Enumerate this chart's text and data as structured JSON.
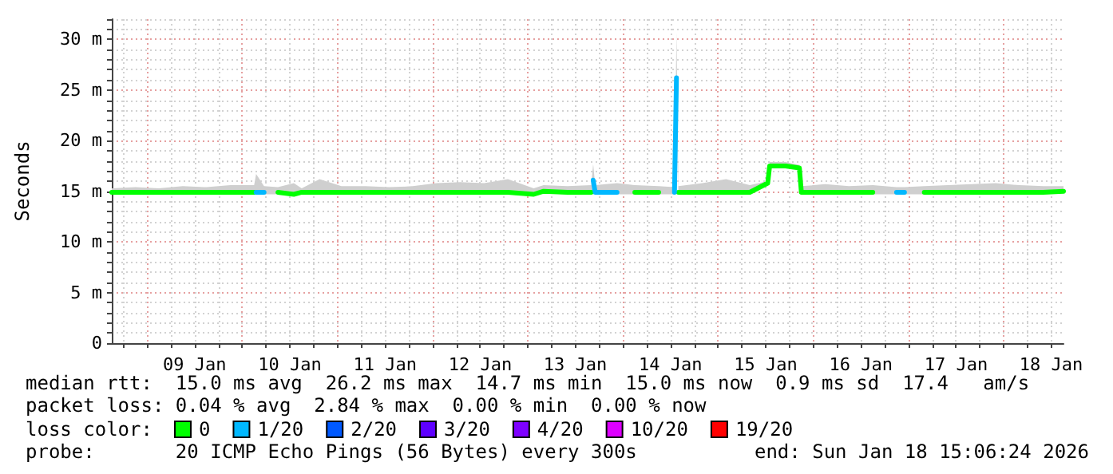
{
  "chart_data": {
    "type": "line",
    "ylabel": "Seconds",
    "legend_title": "loss color:",
    "annotations": [
      "median rtt:  15.0 ms avg  26.2 ms max  14.7 ms min  15.0 ms now  0.9 ms sd  17.4   am/s",
      "packet loss: 0.04 % avg  2.84 % max  0.00 % min  0.00 % now",
      "probe:       20 ICMP Echo Pings (56 Bytes) every 300s",
      "end: Sun Jan 18 15:06:24 2026"
    ],
    "x": [
      "2026-01-08T15:06",
      "2026-01-08T21:00",
      "2026-01-09T03:00",
      "2026-01-09T09:00",
      "2026-01-09T15:00",
      "2026-01-09T21:00",
      "2026-01-10T03:00",
      "2026-01-10T03:30",
      "2026-01-10T05:30",
      "2026-01-10T09:00",
      "2026-01-10T13:00",
      "2026-01-10T15:00",
      "2026-01-10T19:30",
      "2026-01-11T01:00",
      "2026-01-11T07:00",
      "2026-01-11T13:00",
      "2026-01-11T19:00",
      "2026-01-12T01:00",
      "2026-01-12T07:00",
      "2026-01-12T13:00",
      "2026-01-12T19:00",
      "2026-01-13T01:30",
      "2026-01-13T04:00",
      "2026-01-13T10:00",
      "2026-01-13T16:00",
      "2026-01-13T16:30",
      "2026-01-13T17:00",
      "2026-01-13T22:30",
      "2026-01-14T03:00",
      "2026-01-14T09:00",
      "2026-01-14T13:00",
      "2026-01-14T13:30",
      "2026-01-14T14:00",
      "2026-01-14T20:00",
      "2026-01-15T02:00",
      "2026-01-15T08:00",
      "2026-01-15T12:30",
      "2026-01-15T13:00",
      "2026-01-15T17:00",
      "2026-01-15T20:30",
      "2026-01-15T21:00",
      "2026-01-16T03:00",
      "2026-01-16T09:00",
      "2026-01-16T15:00",
      "2026-01-16T21:00",
      "2026-01-16T23:00",
      "2026-01-17T04:00",
      "2026-01-17T10:00",
      "2026-01-17T16:00",
      "2026-01-17T22:00",
      "2026-01-18T04:00",
      "2026-01-18T10:00",
      "2026-01-18T15:06"
    ],
    "series": [
      {
        "name": "0",
        "color": "#00ff00",
        "values": [
          14.9,
          14.9,
          14.9,
          14.9,
          14.9,
          14.9,
          14.9,
          null,
          null,
          14.9,
          14.7,
          14.9,
          14.9,
          14.9,
          14.9,
          14.9,
          14.9,
          14.9,
          14.9,
          14.9,
          14.9,
          14.7,
          15.0,
          14.9,
          14.9,
          null,
          null,
          null,
          14.9,
          14.9,
          null,
          null,
          14.9,
          14.9,
          14.9,
          14.9,
          15.8,
          17.5,
          17.5,
          17.3,
          14.9,
          14.9,
          14.9,
          14.9,
          null,
          null,
          14.9,
          14.9,
          14.9,
          14.9,
          14.9,
          14.9,
          15.0
        ],
        "lower": [
          14.7,
          14.7,
          14.7,
          14.7,
          14.7,
          14.7,
          14.7,
          14.7,
          14.7,
          14.7,
          14.6,
          14.7,
          14.7,
          14.7,
          14.7,
          14.7,
          14.7,
          14.7,
          14.7,
          14.7,
          14.7,
          14.5,
          14.8,
          14.7,
          14.7,
          15.0,
          14.7,
          14.7,
          14.7,
          14.7,
          14.7,
          24.0,
          14.7,
          14.7,
          14.7,
          14.7,
          15.6,
          17.3,
          17.3,
          17.2,
          14.7,
          14.7,
          14.7,
          14.7,
          14.7,
          14.7,
          14.7,
          14.7,
          14.7,
          14.7,
          14.7,
          14.7,
          14.8
        ],
        "upper": [
          15.3,
          15.4,
          15.3,
          15.5,
          15.4,
          15.6,
          15.6,
          16.7,
          15.5,
          15.4,
          15.8,
          15.3,
          16.2,
          15.5,
          15.5,
          15.4,
          15.5,
          15.8,
          15.9,
          15.8,
          16.2,
          15.3,
          15.6,
          15.5,
          15.6,
          17.7,
          15.6,
          15.8,
          15.6,
          15.5,
          15.4,
          30.7,
          15.5,
          15.8,
          16.2,
          15.6,
          16.0,
          17.9,
          17.9,
          17.6,
          15.5,
          15.7,
          15.5,
          15.6,
          15.4,
          15.4,
          15.5,
          15.6,
          15.7,
          15.8,
          15.6,
          15.5,
          15.5
        ]
      },
      {
        "name": "1/20",
        "color": "#00b8ff",
        "values": [
          null,
          null,
          null,
          null,
          null,
          null,
          null,
          14.9,
          14.9,
          null,
          null,
          null,
          null,
          null,
          null,
          null,
          null,
          null,
          null,
          null,
          null,
          null,
          null,
          null,
          null,
          16.1,
          14.9,
          14.9,
          null,
          null,
          14.9,
          26.2,
          null,
          null,
          null,
          null,
          null,
          null,
          null,
          null,
          null,
          null,
          null,
          null,
          14.9,
          14.9,
          null,
          null,
          null,
          null,
          null,
          null,
          null
        ]
      },
      {
        "name": "2/20",
        "color": "#0059ff",
        "values": [
          null,
          null,
          null,
          null,
          null,
          null,
          null,
          null,
          null,
          null,
          null,
          null,
          null,
          null,
          null,
          null,
          null,
          null,
          null,
          null,
          null,
          null,
          null,
          null,
          null,
          null,
          null,
          null,
          null,
          null,
          null,
          null,
          null,
          null,
          null,
          null,
          null,
          null,
          null,
          null,
          null,
          null,
          null,
          null,
          null,
          null,
          null,
          null,
          null,
          null,
          null,
          null,
          null
        ]
      },
      {
        "name": "3/20",
        "color": "#5e00ff",
        "values": [
          null,
          null,
          null,
          null,
          null,
          null,
          null,
          null,
          null,
          null,
          null,
          null,
          null,
          null,
          null,
          null,
          null,
          null,
          null,
          null,
          null,
          null,
          null,
          null,
          null,
          null,
          null,
          null,
          null,
          null,
          null,
          null,
          null,
          null,
          null,
          null,
          null,
          null,
          null,
          null,
          null,
          null,
          null,
          null,
          null,
          null,
          null,
          null,
          null,
          null,
          null,
          null,
          null
        ]
      },
      {
        "name": "4/20",
        "color": "#7e00ff",
        "values": [
          null,
          null,
          null,
          null,
          null,
          null,
          null,
          null,
          null,
          null,
          null,
          null,
          null,
          null,
          null,
          null,
          null,
          null,
          null,
          null,
          null,
          null,
          null,
          null,
          null,
          null,
          null,
          null,
          null,
          null,
          null,
          null,
          null,
          null,
          null,
          null,
          null,
          null,
          null,
          null,
          null,
          null,
          null,
          null,
          null,
          null,
          null,
          null,
          null,
          null,
          null,
          null,
          null
        ]
      },
      {
        "name": "10/20",
        "color": "#dd00ff",
        "values": [
          null,
          null,
          null,
          null,
          null,
          null,
          null,
          null,
          null,
          null,
          null,
          null,
          null,
          null,
          null,
          null,
          null,
          null,
          null,
          null,
          null,
          null,
          null,
          null,
          null,
          null,
          null,
          null,
          null,
          null,
          null,
          null,
          null,
          null,
          null,
          null,
          null,
          null,
          null,
          null,
          null,
          null,
          null,
          null,
          null,
          null,
          null,
          null,
          null,
          null,
          null,
          null,
          null
        ]
      },
      {
        "name": "19/20",
        "color": "#ff0000",
        "values": [
          null,
          null,
          null,
          null,
          null,
          null,
          null,
          null,
          null,
          null,
          null,
          null,
          null,
          null,
          null,
          null,
          null,
          null,
          null,
          null,
          null,
          null,
          null,
          null,
          null,
          null,
          null,
          null,
          null,
          null,
          null,
          null,
          null,
          null,
          null,
          null,
          null,
          null,
          null,
          null,
          null,
          null,
          null,
          null,
          null,
          null,
          null,
          null,
          null,
          null,
          null,
          null,
          null
        ]
      }
    ],
    "xlim": [
      "2026-01-08T15:06",
      "2026-01-18T15:06"
    ],
    "xticks": [
      {
        "value": "2026-01-08T18:00",
        "label": null
      },
      {
        "value": "2026-01-09T00:00",
        "label": null
      },
      {
        "value": "2026-01-09T06:00",
        "label": null
      },
      {
        "value": "2026-01-09T12:00",
        "label": "09 Jan"
      },
      {
        "value": "2026-01-09T18:00",
        "label": null
      },
      {
        "value": "2026-01-10T00:00",
        "label": null
      },
      {
        "value": "2026-01-10T06:00",
        "label": null
      },
      {
        "value": "2026-01-10T12:00",
        "label": "10 Jan"
      },
      {
        "value": "2026-01-10T18:00",
        "label": null
      },
      {
        "value": "2026-01-11T00:00",
        "label": null
      },
      {
        "value": "2026-01-11T06:00",
        "label": null
      },
      {
        "value": "2026-01-11T12:00",
        "label": "11 Jan"
      },
      {
        "value": "2026-01-11T18:00",
        "label": null
      },
      {
        "value": "2026-01-12T00:00",
        "label": null
      },
      {
        "value": "2026-01-12T06:00",
        "label": null
      },
      {
        "value": "2026-01-12T12:00",
        "label": "12 Jan"
      },
      {
        "value": "2026-01-12T18:00",
        "label": null
      },
      {
        "value": "2026-01-13T00:00",
        "label": null
      },
      {
        "value": "2026-01-13T06:00",
        "label": null
      },
      {
        "value": "2026-01-13T12:00",
        "label": "13 Jan"
      },
      {
        "value": "2026-01-13T18:00",
        "label": null
      },
      {
        "value": "2026-01-14T00:00",
        "label": null
      },
      {
        "value": "2026-01-14T06:00",
        "label": null
      },
      {
        "value": "2026-01-14T12:00",
        "label": "14 Jan"
      },
      {
        "value": "2026-01-14T18:00",
        "label": null
      },
      {
        "value": "2026-01-15T00:00",
        "label": null
      },
      {
        "value": "2026-01-15T06:00",
        "label": null
      },
      {
        "value": "2026-01-15T12:00",
        "label": "15 Jan"
      },
      {
        "value": "2026-01-15T18:00",
        "label": null
      },
      {
        "value": "2026-01-16T00:00",
        "label": null
      },
      {
        "value": "2026-01-16T06:00",
        "label": null
      },
      {
        "value": "2026-01-16T12:00",
        "label": "16 Jan"
      },
      {
        "value": "2026-01-16T18:00",
        "label": null
      },
      {
        "value": "2026-01-17T00:00",
        "label": null
      },
      {
        "value": "2026-01-17T06:00",
        "label": null
      },
      {
        "value": "2026-01-17T12:00",
        "label": "17 Jan"
      },
      {
        "value": "2026-01-17T18:00",
        "label": null
      },
      {
        "value": "2026-01-18T00:00",
        "label": null
      },
      {
        "value": "2026-01-18T06:00",
        "label": null
      },
      {
        "value": "2026-01-18T12:00",
        "label": "18 Jan"
      }
    ],
    "ylim": [
      0,
      32
    ],
    "yticks": [
      0,
      {
        "value": 1,
        "label": null
      },
      {
        "value": 2,
        "label": null
      },
      {
        "value": 3,
        "label": null
      },
      {
        "value": 4,
        "label": null
      },
      {
        "value": 5,
        "label": "5 m"
      },
      {
        "value": 6,
        "label": null
      },
      {
        "value": 7,
        "label": null
      },
      {
        "value": 8,
        "label": null
      },
      {
        "value": 9,
        "label": null
      },
      {
        "value": 10,
        "label": "10 m"
      },
      {
        "value": 11,
        "label": null
      },
      {
        "value": 12,
        "label": null
      },
      {
        "value": 13,
        "label": null
      },
      {
        "value": 14,
        "label": null
      },
      {
        "value": 15,
        "label": "15 m"
      },
      {
        "value": 16,
        "label": null
      },
      {
        "value": 17,
        "label": null
      },
      {
        "value": 18,
        "label": null
      },
      {
        "value": 19,
        "label": null
      },
      {
        "value": 20,
        "label": "20 m"
      },
      {
        "value": 21,
        "label": null
      },
      {
        "value": 22,
        "label": null
      },
      {
        "value": 23,
        "label": null
      },
      {
        "value": 24,
        "label": null
      },
      {
        "value": 25,
        "label": "25 m"
      },
      {
        "value": 26,
        "label": null
      },
      {
        "value": 27,
        "label": null
      },
      {
        "value": 28,
        "label": null
      },
      {
        "value": 29,
        "label": null
      },
      {
        "value": 30,
        "label": "30 m"
      },
      {
        "value": 31,
        "label": null
      },
      {
        "value": 32,
        "label": null
      }
    ],
    "grid": true,
    "legend": "bottom"
  }
}
